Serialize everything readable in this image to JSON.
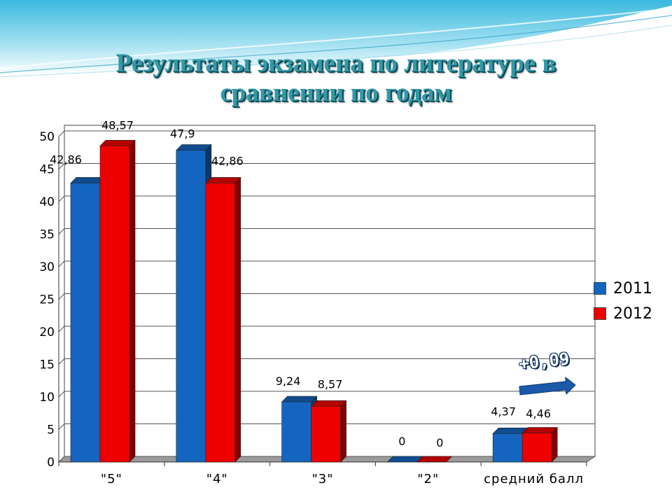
{
  "slide": {
    "title_line1": "Результаты экзамена по литературе  в",
    "title_line2": "сравнении по годам"
  },
  "chart_data": {
    "type": "bar",
    "categories": [
      "\"5\"",
      "\"4\"",
      "\"3\"",
      "\"2\"",
      "средний балл"
    ],
    "series": [
      {
        "name": "2011",
        "values": [
          42.86,
          47.9,
          9.24,
          0,
          4.37
        ],
        "labels": [
          "42,86",
          "47,9",
          "9,24",
          "0",
          "4,37"
        ],
        "color": "#1465c0"
      },
      {
        "name": "2012",
        "values": [
          48.57,
          42.86,
          8.57,
          0,
          4.46
        ],
        "labels": [
          "48,57",
          "42,86",
          "8,57",
          "0",
          "4,46"
        ],
        "color": "#ee0000"
      }
    ],
    "yticks": [
      "0",
      "5",
      "10",
      "15",
      "20",
      "25",
      "30",
      "35",
      "40",
      "45",
      "50"
    ],
    "ylim": [
      0,
      50
    ],
    "grid": true,
    "legend": "right",
    "annotation": "+0,09"
  },
  "colors": {
    "title": "#3399a8",
    "series_2011": "#1465c0",
    "series_2012": "#ee0000",
    "floor": "#8a8a8a"
  },
  "icons": {
    "arrow": "right-arrow-icon"
  }
}
